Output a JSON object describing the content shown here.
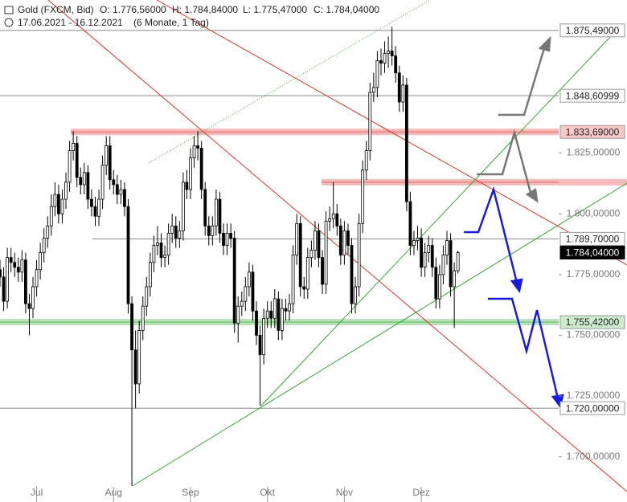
{
  "header": {
    "title": "Gold (FXCM, Bid)",
    "ohlc": [
      "O: 1.776,56000",
      "H: 1.784,84000",
      "L: 1.775,47000",
      "C: 1.784,04000"
    ],
    "range": "17.06.2021 - 16.12.2021",
    "period": "(6 Monate, 1 Tag)"
  },
  "chart_data": {
    "type": "candlestick",
    "up_color": "#ffffff",
    "down_color": "#000000",
    "xlim": [
      0,
      152.5
    ],
    "xticks": [
      {
        "value": 10,
        "label": "Jul"
      },
      {
        "value": 31,
        "label": "Aug"
      },
      {
        "value": 52,
        "label": "Sep"
      },
      {
        "value": 73,
        "label": "Okt"
      },
      {
        "value": 94,
        "label": "Nov"
      },
      {
        "value": 115,
        "label": "Dez"
      }
    ],
    "ylim": [
      1688,
      1888
    ],
    "yticks": [
      {
        "value": 1825,
        "label": "1.825,00000"
      },
      {
        "value": 1800,
        "label": "1.800,00000"
      },
      {
        "value": 1775,
        "label": "1.775,00000"
      },
      {
        "value": 1750,
        "label": "1.750,00000"
      },
      {
        "value": 1725,
        "label": "1.725,00000"
      },
      {
        "value": 1700,
        "label": "1.700,00000"
      }
    ],
    "levels": [
      {
        "value": 1875.49,
        "label": "1.875,49000",
        "kind": "line"
      },
      {
        "value": 1848.60999,
        "label": "1.848,60999",
        "kind": "line"
      },
      {
        "value": 1833.69,
        "label": "1.833,69000",
        "kind": "red-zone"
      },
      {
        "value": 1813,
        "label": null,
        "kind": "red-zone"
      },
      {
        "value": 1789.7,
        "label": "1.789,70000",
        "kind": "line"
      },
      {
        "value": 1784.04,
        "label": "1.784,04000",
        "kind": "current"
      },
      {
        "value": 1755.42,
        "label": "1.755,42000",
        "kind": "green-zone"
      },
      {
        "value": 1720,
        "label": "1.720,00000",
        "kind": "line"
      }
    ],
    "values": [
      [
        1777,
        1781,
        1770,
        1774
      ],
      [
        1774,
        1778,
        1760,
        1764
      ],
      [
        1764,
        1786,
        1761,
        1782
      ],
      [
        1782,
        1786,
        1776,
        1780
      ],
      [
        1780,
        1784,
        1774,
        1778
      ],
      [
        1778,
        1782,
        1772,
        1776
      ],
      [
        1776,
        1785,
        1772,
        1781
      ],
      [
        1781,
        1784,
        1759,
        1763
      ],
      [
        1763,
        1767,
        1750,
        1761
      ],
      [
        1761,
        1774,
        1757,
        1770
      ],
      [
        1770,
        1781,
        1766,
        1777
      ],
      [
        1777,
        1788,
        1773,
        1784
      ],
      [
        1784,
        1794,
        1780,
        1790
      ],
      [
        1790,
        1799,
        1786,
        1795
      ],
      [
        1795,
        1808,
        1791,
        1803
      ],
      [
        1803,
        1813,
        1799,
        1808
      ],
      [
        1808,
        1812,
        1796,
        1800
      ],
      [
        1800,
        1810,
        1796,
        1806
      ],
      [
        1806,
        1817,
        1802,
        1813
      ],
      [
        1813,
        1830,
        1809,
        1826
      ],
      [
        1826,
        1834,
        1822,
        1829
      ],
      [
        1829,
        1832,
        1811,
        1815
      ],
      [
        1815,
        1819,
        1808,
        1812
      ],
      [
        1812,
        1821,
        1808,
        1817
      ],
      [
        1817,
        1820,
        1802,
        1806
      ],
      [
        1806,
        1810,
        1799,
        1803
      ],
      [
        1803,
        1807,
        1795,
        1799
      ],
      [
        1799,
        1810,
        1795,
        1806
      ],
      [
        1806,
        1824,
        1802,
        1820
      ],
      [
        1820,
        1832,
        1816,
        1828
      ],
      [
        1828,
        1832,
        1810,
        1814
      ],
      [
        1814,
        1818,
        1808,
        1812
      ],
      [
        1812,
        1816,
        1804,
        1808
      ],
      [
        1808,
        1814,
        1804,
        1810
      ],
      [
        1810,
        1813,
        1799,
        1803
      ],
      [
        1803,
        1806,
        1759,
        1763
      ],
      [
        1763,
        1766,
        1688,
        1744
      ],
      [
        1744,
        1752,
        1720,
        1730
      ],
      [
        1730,
        1756,
        1726,
        1752
      ],
      [
        1752,
        1766,
        1748,
        1762
      ],
      [
        1762,
        1774,
        1758,
        1770
      ],
      [
        1770,
        1784,
        1766,
        1780
      ],
      [
        1780,
        1791,
        1776,
        1787
      ],
      [
        1787,
        1795,
        1783,
        1788
      ],
      [
        1788,
        1792,
        1778,
        1782
      ],
      [
        1782,
        1787,
        1778,
        1783
      ],
      [
        1783,
        1796,
        1779,
        1792
      ],
      [
        1792,
        1800,
        1788,
        1795
      ],
      [
        1795,
        1799,
        1786,
        1790
      ],
      [
        1790,
        1797,
        1786,
        1793
      ],
      [
        1793,
        1817,
        1789,
        1813
      ],
      [
        1813,
        1818,
        1806,
        1810
      ],
      [
        1810,
        1827,
        1806,
        1823
      ],
      [
        1823,
        1832,
        1819,
        1828
      ],
      [
        1828,
        1834,
        1822,
        1827
      ],
      [
        1827,
        1830,
        1806,
        1810
      ],
      [
        1810,
        1813,
        1791,
        1795
      ],
      [
        1795,
        1799,
        1787,
        1791
      ],
      [
        1791,
        1799,
        1787,
        1795
      ],
      [
        1795,
        1810,
        1791,
        1806
      ],
      [
        1806,
        1809,
        1788,
        1792
      ],
      [
        1792,
        1796,
        1783,
        1787
      ],
      [
        1787,
        1796,
        1783,
        1792
      ],
      [
        1792,
        1796,
        1786,
        1790
      ],
      [
        1790,
        1793,
        1751,
        1755
      ],
      [
        1755,
        1766,
        1747,
        1762
      ],
      [
        1762,
        1768,
        1758,
        1764
      ],
      [
        1764,
        1774,
        1760,
        1770
      ],
      [
        1770,
        1780,
        1766,
        1776
      ],
      [
        1776,
        1779,
        1756,
        1760
      ],
      [
        1760,
        1764,
        1746,
        1750
      ],
      [
        1750,
        1754,
        1721,
        1742
      ],
      [
        1742,
        1761,
        1738,
        1757
      ],
      [
        1757,
        1764,
        1753,
        1760
      ],
      [
        1760,
        1764,
        1753,
        1757
      ],
      [
        1757,
        1769,
        1753,
        1765
      ],
      [
        1765,
        1768,
        1748,
        1752
      ],
      [
        1752,
        1765,
        1748,
        1761
      ],
      [
        1761,
        1765,
        1756,
        1760
      ],
      [
        1760,
        1767,
        1756,
        1763
      ],
      [
        1763,
        1787,
        1759,
        1783
      ],
      [
        1783,
        1800,
        1779,
        1796
      ],
      [
        1796,
        1799,
        1766,
        1770
      ],
      [
        1770,
        1774,
        1765,
        1769
      ],
      [
        1769,
        1786,
        1765,
        1782
      ],
      [
        1782,
        1789,
        1778,
        1785
      ],
      [
        1785,
        1797,
        1781,
        1793
      ],
      [
        1793,
        1796,
        1778,
        1782
      ],
      [
        1782,
        1785,
        1767,
        1771
      ],
      [
        1771,
        1801,
        1767,
        1797
      ],
      [
        1797,
        1803,
        1793,
        1798
      ],
      [
        1798,
        1813,
        1794,
        1800
      ],
      [
        1800,
        1804,
        1791,
        1795
      ],
      [
        1795,
        1798,
        1779,
        1783
      ],
      [
        1783,
        1797,
        1779,
        1793
      ],
      [
        1793,
        1796,
        1783,
        1787
      ],
      [
        1787,
        1790,
        1759,
        1763
      ],
      [
        1763,
        1774,
        1759,
        1770
      ],
      [
        1770,
        1800,
        1766,
        1796
      ],
      [
        1796,
        1822,
        1792,
        1818
      ],
      [
        1818,
        1830,
        1814,
        1826
      ],
      [
        1826,
        1854,
        1822,
        1850
      ],
      [
        1850,
        1858,
        1846,
        1852
      ],
      [
        1852,
        1867,
        1848,
        1863
      ],
      [
        1863,
        1868,
        1857,
        1862
      ],
      [
        1862,
        1871,
        1858,
        1866
      ],
      [
        1866,
        1873,
        1860,
        1867
      ],
      [
        1867,
        1877,
        1861,
        1865
      ],
      [
        1865,
        1869,
        1854,
        1858
      ],
      [
        1858,
        1861,
        1842,
        1846
      ],
      [
        1846,
        1857,
        1842,
        1853
      ],
      [
        1853,
        1856,
        1801,
        1805
      ],
      [
        1805,
        1809,
        1783,
        1787
      ],
      [
        1787,
        1793,
        1783,
        1789
      ],
      [
        1789,
        1795,
        1785,
        1790
      ],
      [
        1790,
        1794,
        1774,
        1778
      ],
      [
        1778,
        1788,
        1774,
        1784
      ],
      [
        1784,
        1791,
        1780,
        1787
      ],
      [
        1787,
        1790,
        1774,
        1778
      ],
      [
        1778,
        1782,
        1761,
        1765
      ],
      [
        1765,
        1779,
        1761,
        1775
      ],
      [
        1775,
        1787,
        1771,
        1783
      ],
      [
        1783,
        1793,
        1779,
        1789
      ],
      [
        1789,
        1792,
        1766,
        1770
      ],
      [
        1770,
        1780,
        1753,
        1776.56
      ],
      [
        1776.56,
        1784.84,
        1775.47,
        1784.04
      ]
    ]
  }
}
